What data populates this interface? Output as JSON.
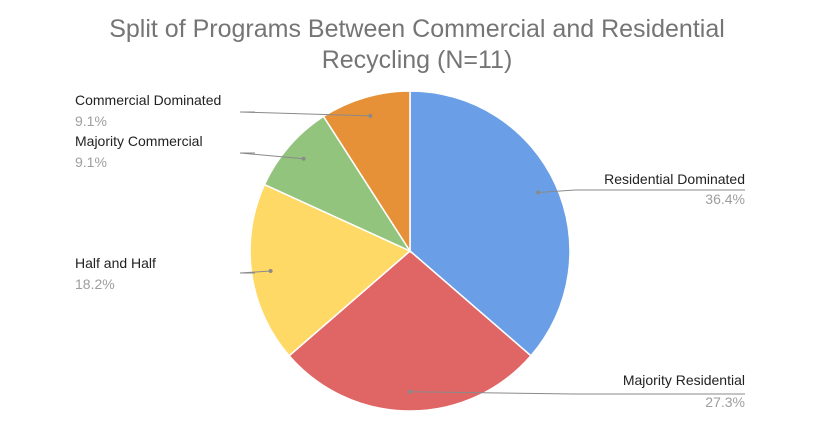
{
  "chart_data": {
    "type": "pie",
    "title_lines": [
      "Split of Programs Between Commercial and Residential",
      "Recycling (N=11)"
    ],
    "slices": [
      {
        "label": "Residential Dominated",
        "value": 36.4,
        "percent_label": "36.4%",
        "color": "#6a9fe8"
      },
      {
        "label": "Majority Residential",
        "value": 27.3,
        "percent_label": "27.3%",
        "color": "#e06666"
      },
      {
        "label": "Half and Half",
        "value": 18.2,
        "percent_label": "18.2%",
        "color": "#ffd966"
      },
      {
        "label": "Majority Commercial",
        "value": 9.1,
        "percent_label": "9.1%",
        "color": "#93c47d"
      },
      {
        "label": "Commercial Dominated",
        "value": 9.1,
        "percent_label": "9.1%",
        "color": "#e69138"
      }
    ]
  }
}
